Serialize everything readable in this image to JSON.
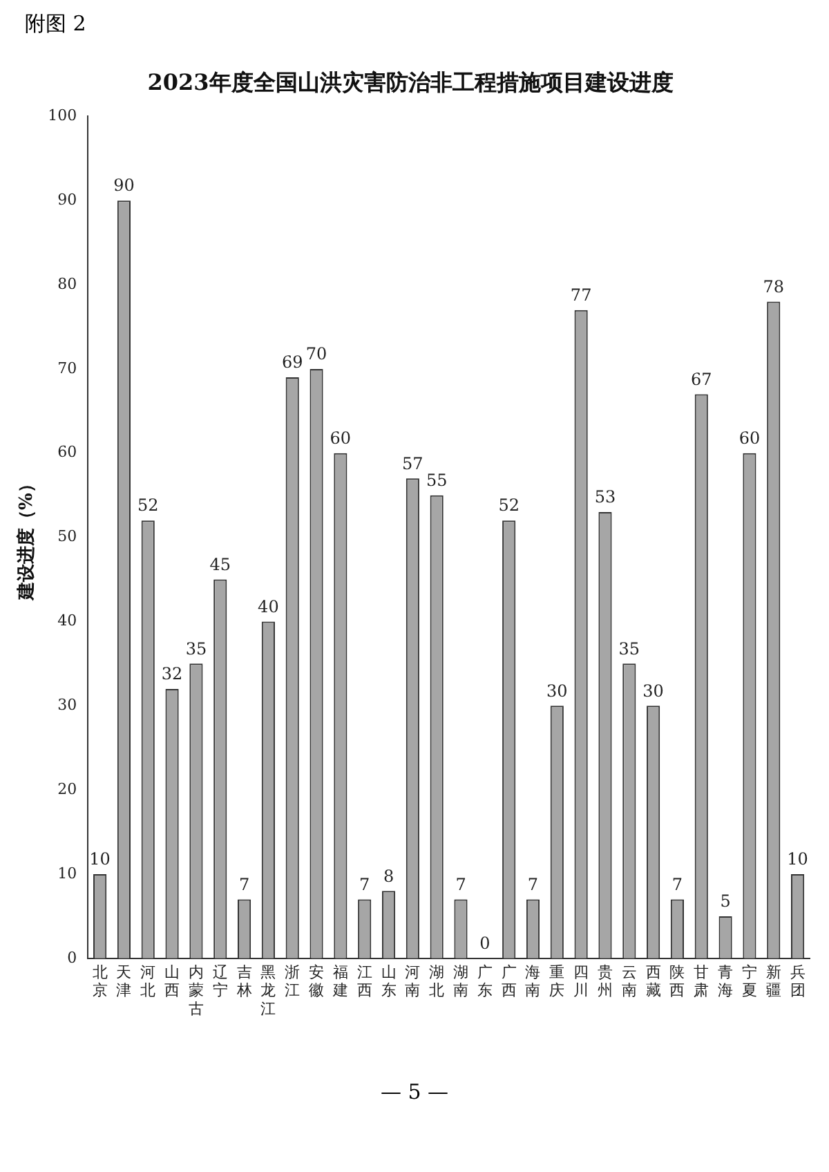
{
  "chart_data": {
    "type": "bar",
    "title": "2023年度全国山洪灾害防治非工程措施项目建设进度",
    "ylabel": "建设进度（%）",
    "categories": [
      "北京",
      "天津",
      "河北",
      "山西",
      "内蒙古",
      "辽宁",
      "吉林",
      "黑龙江",
      "浙江",
      "安徽",
      "福建",
      "江西",
      "山东",
      "河南",
      "湖北",
      "湖南",
      "广东",
      "广西",
      "海南",
      "重庆",
      "四川",
      "贵州",
      "云南",
      "西藏",
      "陕西",
      "甘肃",
      "青海",
      "宁夏",
      "新疆",
      "兵团"
    ],
    "values": [
      10,
      90,
      52,
      32,
      35,
      45,
      7,
      40,
      69,
      70,
      60,
      7,
      8,
      57,
      55,
      7,
      0,
      52,
      7,
      30,
      77,
      53,
      35,
      30,
      7,
      67,
      5,
      60,
      78,
      10
    ],
    "color": "#a6a6a6",
    "ylim": [
      0,
      100
    ],
    "yticks": [
      0,
      10,
      20,
      30,
      40,
      50,
      60,
      70,
      80,
      90,
      100
    ],
    "grid": false,
    "legend": false,
    "data_labels": true,
    "annotations": [
      "附图 2",
      "— 5 —"
    ]
  }
}
